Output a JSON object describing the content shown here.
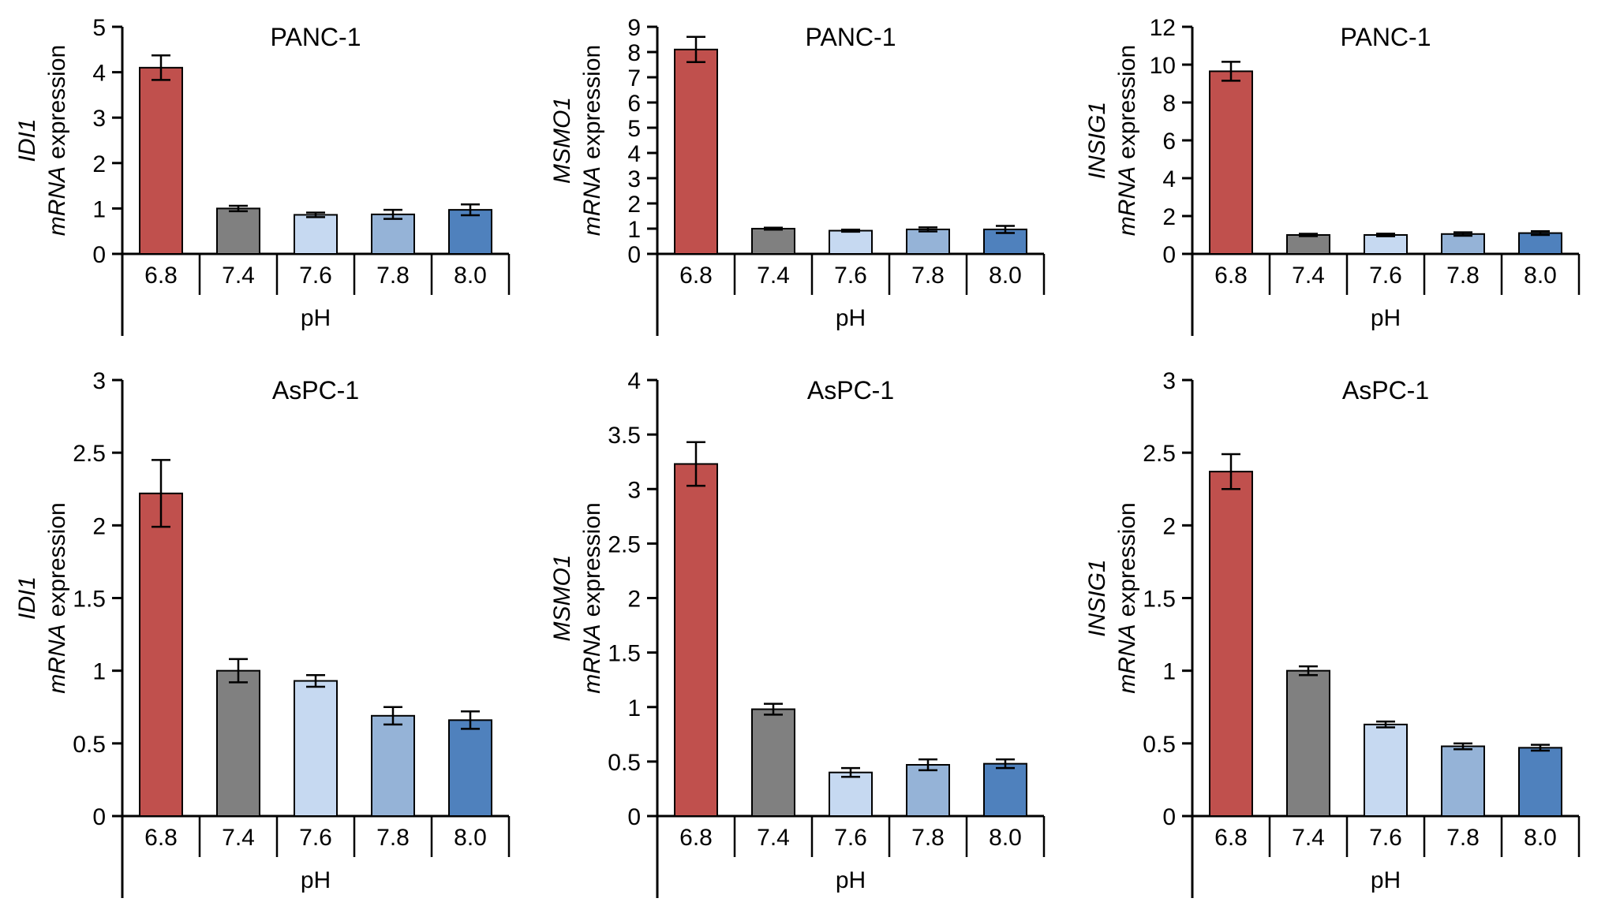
{
  "figure": {
    "rows": 2,
    "cols": 3
  },
  "style": {
    "background": "#FFFFFF",
    "text_color": "#000000",
    "axis_color": "#000000",
    "bar_edge_color": "#000000",
    "error_bar_color": "#000000",
    "bar_fill_colors": [
      "#C0504D",
      "#808080",
      "#C6D9F1",
      "#95B3D7",
      "#4F81BD"
    ]
  },
  "chart_data": [
    {
      "type": "bar",
      "title": "PANC-1",
      "ylabel": {
        "line1": "IDI1",
        "line2_italic": "mRNA",
        "line2_regular": "expression"
      },
      "xlabel": "pH",
      "categories": [
        "6.8",
        "7.4",
        "7.6",
        "7.8",
        "8.0"
      ],
      "values": [
        4.1,
        1.0,
        0.86,
        0.87,
        0.97
      ],
      "errors": [
        0.27,
        0.06,
        0.05,
        0.1,
        0.12
      ],
      "ylim": [
        0,
        5
      ],
      "yticks": [
        0,
        1,
        2,
        3,
        4,
        5
      ],
      "gridlines": false,
      "legend": false
    },
    {
      "type": "bar",
      "title": "PANC-1",
      "ylabel": {
        "line1": "MSMO1",
        "line2_italic": "mRNA",
        "line2_regular": "expression"
      },
      "xlabel": "pH",
      "categories": [
        "6.8",
        "7.4",
        "7.6",
        "7.8",
        "8.0"
      ],
      "values": [
        8.1,
        1.0,
        0.92,
        0.97,
        0.97
      ],
      "errors": [
        0.5,
        0.04,
        0.04,
        0.08,
        0.14
      ],
      "ylim": [
        0,
        9
      ],
      "yticks": [
        0,
        1,
        2,
        3,
        4,
        5,
        6,
        7,
        8,
        9
      ],
      "gridlines": false,
      "legend": false
    },
    {
      "type": "bar",
      "title": "PANC-1",
      "ylabel": {
        "line1": "INSIG1",
        "line2_italic": "mRNA",
        "line2_regular": "expression"
      },
      "xlabel": "pH",
      "categories": [
        "6.8",
        "7.4",
        "7.6",
        "7.8",
        "8.0"
      ],
      "values": [
        9.65,
        1.0,
        1.0,
        1.05,
        1.1
      ],
      "errors": [
        0.5,
        0.06,
        0.07,
        0.09,
        0.1
      ],
      "ylim": [
        0,
        12
      ],
      "yticks": [
        0,
        2,
        4,
        6,
        8,
        10,
        12
      ],
      "gridlines": false,
      "legend": false
    },
    {
      "type": "bar",
      "title": "AsPC-1",
      "ylabel": {
        "line1": "IDI1",
        "line2_italic": "mRNA",
        "line2_regular": "expression"
      },
      "xlabel": "pH",
      "categories": [
        "6.8",
        "7.4",
        "7.6",
        "7.8",
        "8.0"
      ],
      "values": [
        2.22,
        1.0,
        0.93,
        0.69,
        0.66
      ],
      "errors": [
        0.23,
        0.08,
        0.04,
        0.06,
        0.06
      ],
      "ylim": [
        0,
        3
      ],
      "yticks": [
        0,
        0.5,
        1,
        1.5,
        2,
        2.5,
        3
      ],
      "gridlines": false,
      "legend": false
    },
    {
      "type": "bar",
      "title": "AsPC-1",
      "ylabel": {
        "line1": "MSMO1",
        "line2_italic": "mRNA",
        "line2_regular": "expression"
      },
      "xlabel": "pH",
      "categories": [
        "6.8",
        "7.4",
        "7.6",
        "7.8",
        "8.0"
      ],
      "values": [
        3.23,
        0.98,
        0.4,
        0.47,
        0.48
      ],
      "errors": [
        0.2,
        0.05,
        0.04,
        0.05,
        0.04
      ],
      "ylim": [
        0,
        4
      ],
      "yticks": [
        0,
        0.5,
        1,
        1.5,
        2,
        2.5,
        3,
        3.5,
        4
      ],
      "gridlines": false,
      "legend": false
    },
    {
      "type": "bar",
      "title": "AsPC-1",
      "ylabel": {
        "line1": "INSIG1",
        "line2_italic": "mRNA",
        "line2_regular": "expression"
      },
      "xlabel": "pH",
      "categories": [
        "6.8",
        "7.4",
        "7.6",
        "7.8",
        "8.0"
      ],
      "values": [
        2.37,
        1.0,
        0.63,
        0.48,
        0.47
      ],
      "errors": [
        0.12,
        0.03,
        0.02,
        0.02,
        0.02
      ],
      "ylim": [
        0,
        3
      ],
      "yticks": [
        0,
        0.5,
        1,
        1.5,
        2,
        2.5,
        3
      ],
      "gridlines": false,
      "legend": false
    }
  ]
}
